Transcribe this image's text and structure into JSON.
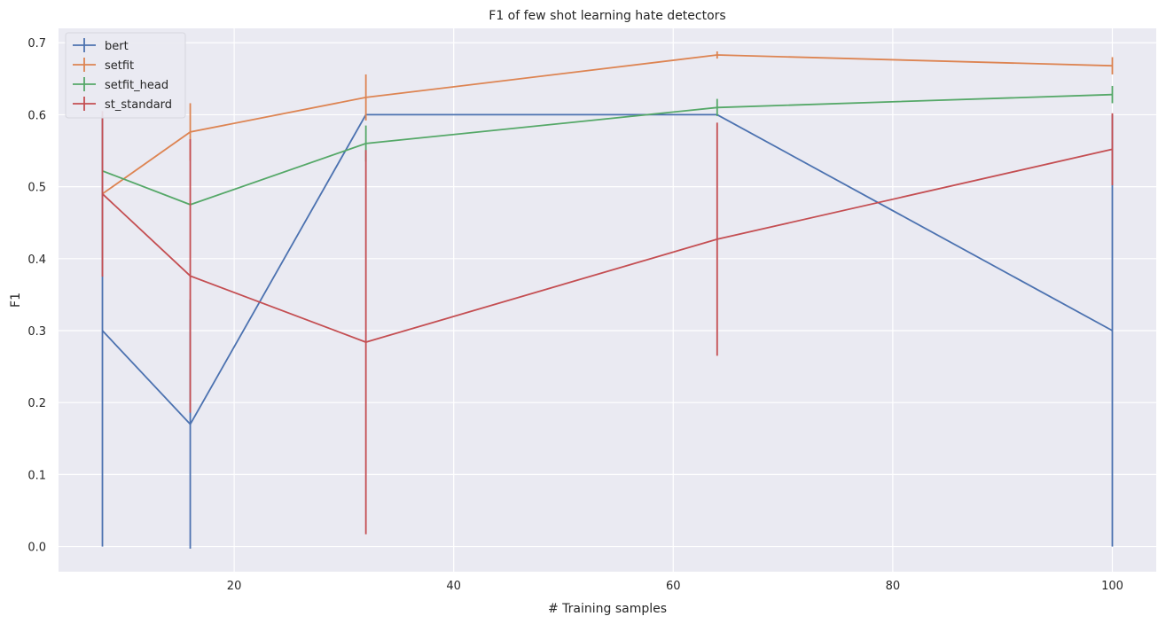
{
  "chart_data": {
    "type": "line",
    "title": "F1 of few shot learning hate detectors",
    "xlabel": "# Training samples",
    "ylabel": "F1",
    "xlim": [
      4,
      104
    ],
    "ylim": [
      -0.035,
      0.72
    ],
    "x_ticks": [
      20,
      40,
      60,
      80,
      100
    ],
    "y_ticks": [
      0.0,
      0.1,
      0.2,
      0.3,
      0.4,
      0.5,
      0.6,
      0.7
    ],
    "grid": true,
    "legend_position": "top-left",
    "x": [
      8,
      16,
      32,
      64,
      100
    ],
    "series": [
      {
        "name": "bert",
        "color": "#4c72b0",
        "values": [
          0.3,
          0.17,
          0.6,
          0.6,
          0.3
        ],
        "errors": [
          0.3,
          0.173,
          0.0,
          0.0,
          0.3
        ]
      },
      {
        "name": "setfit",
        "color": "#dd8452",
        "values": [
          0.49,
          0.576,
          0.624,
          0.683,
          0.668
        ],
        "errors": [
          0.0,
          0.04,
          0.032,
          0.005,
          0.012
        ]
      },
      {
        "name": "setfit_head",
        "color": "#55a868",
        "values": [
          0.522,
          0.475,
          0.56,
          0.61,
          0.628
        ],
        "errors": [
          0.0,
          0.0,
          0.025,
          0.012,
          0.012
        ]
      },
      {
        "name": "st_standard",
        "color": "#c44e52",
        "values": [
          0.49,
          0.376,
          0.284,
          0.427,
          0.552
        ],
        "errors": [
          0.115,
          0.19,
          0.267,
          0.162,
          0.05
        ]
      }
    ]
  }
}
